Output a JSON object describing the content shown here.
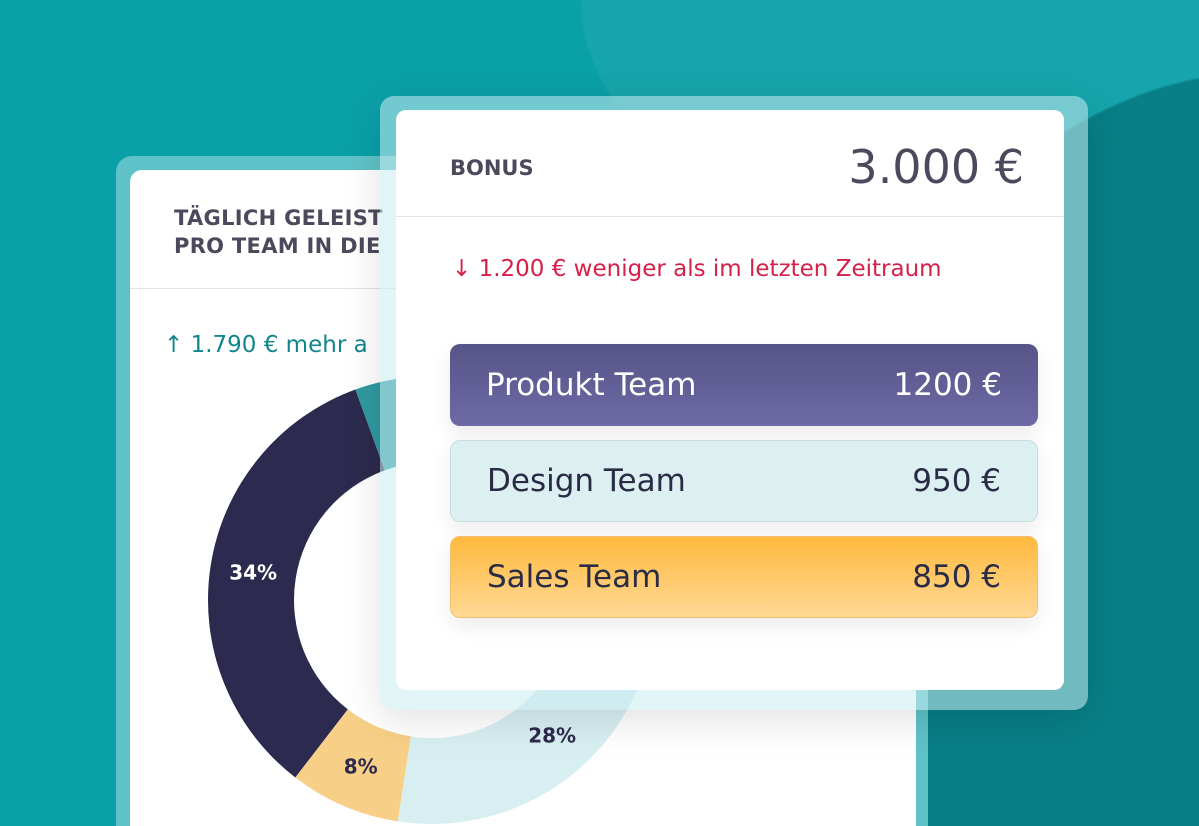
{
  "left_card": {
    "title_line1": "TÄGLICH GELEIST",
    "title_line2": "PRO TEAM IN DIE",
    "delta": "↑ 1.790 € mehr a"
  },
  "chart_data": {
    "type": "pie",
    "donut": true,
    "segments": [
      {
        "label": "34%",
        "value": 34,
        "color": "#2c2a4e"
      },
      {
        "label": "8%",
        "value": 8,
        "color": "#f8cf86"
      },
      {
        "label": "28%",
        "value": 28,
        "color": "#d8eff2"
      },
      {
        "label": "",
        "value": 30,
        "color": "#2f9aa0"
      }
    ]
  },
  "right_card": {
    "label": "BONUS",
    "value": "3.000 €",
    "delta": "↓ 1.200 € weniger als im letzten Zeitraum",
    "teams": [
      {
        "name": "Produkt Team",
        "amount": "1200 €",
        "color": "#615e98"
      },
      {
        "name": "Design Team",
        "amount": "950 €",
        "color": "#dcf0f2"
      },
      {
        "name": "Sales Team",
        "amount": "850 €",
        "color": "#ffc65c"
      }
    ]
  }
}
